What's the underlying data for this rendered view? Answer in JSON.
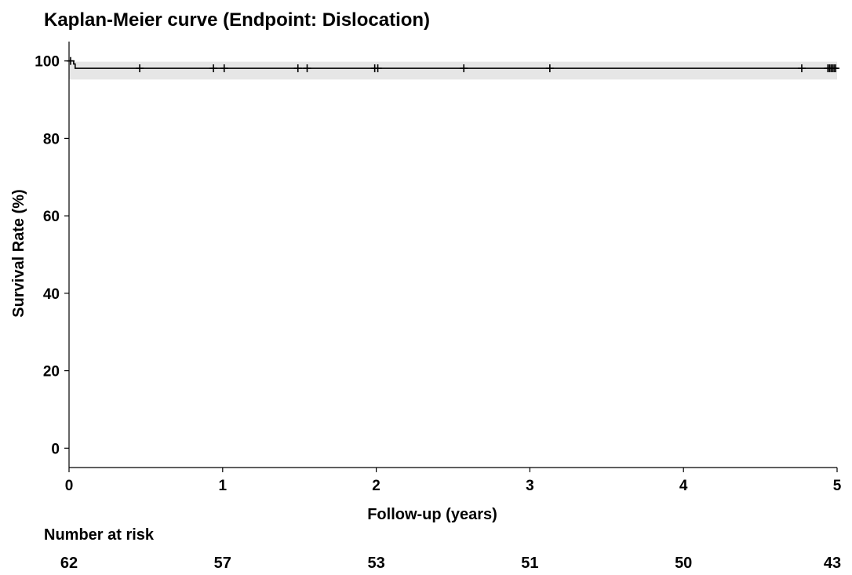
{
  "chart_data": {
    "type": "line",
    "title": "Kaplan-Meier curve (Endpoint: Dislocation)",
    "xlabel": "Follow-up (years)",
    "ylabel": "Survival Rate (%)",
    "xlim": [
      0,
      5
    ],
    "ylim": [
      -5,
      105
    ],
    "x_ticks": [
      0,
      1,
      2,
      3,
      4,
      5
    ],
    "y_ticks": [
      0,
      20,
      40,
      60,
      80,
      100
    ],
    "grid": false,
    "colors": {
      "line": "#000000",
      "ci_band": "#e6e6e6",
      "censor": "#000000"
    },
    "series": [
      {
        "steps": [
          {
            "x": 0,
            "y": 100
          },
          {
            "x": 0.03,
            "y": 100
          },
          {
            "x": 0.03,
            "y": 99.2
          },
          {
            "x": 0.04,
            "y": 99.2
          },
          {
            "x": 0.04,
            "y": 98.1
          },
          {
            "x": 5.0,
            "y": 98.1
          }
        ],
        "ci_lower": 95.2,
        "ci_upper": 99.8,
        "censored_x": [
          0.01,
          0.46,
          0.94,
          1.01,
          1.49,
          1.55,
          1.99,
          2.01,
          2.57,
          3.13,
          4.77,
          4.94,
          4.95,
          4.96,
          4.97,
          4.98,
          4.99
        ]
      }
    ],
    "risk_table": {
      "label": "Number at risk",
      "x": [
        0,
        1,
        2,
        3,
        4,
        5
      ],
      "values": [
        "62",
        "57",
        "53",
        "51",
        "50",
        "43"
      ]
    }
  }
}
